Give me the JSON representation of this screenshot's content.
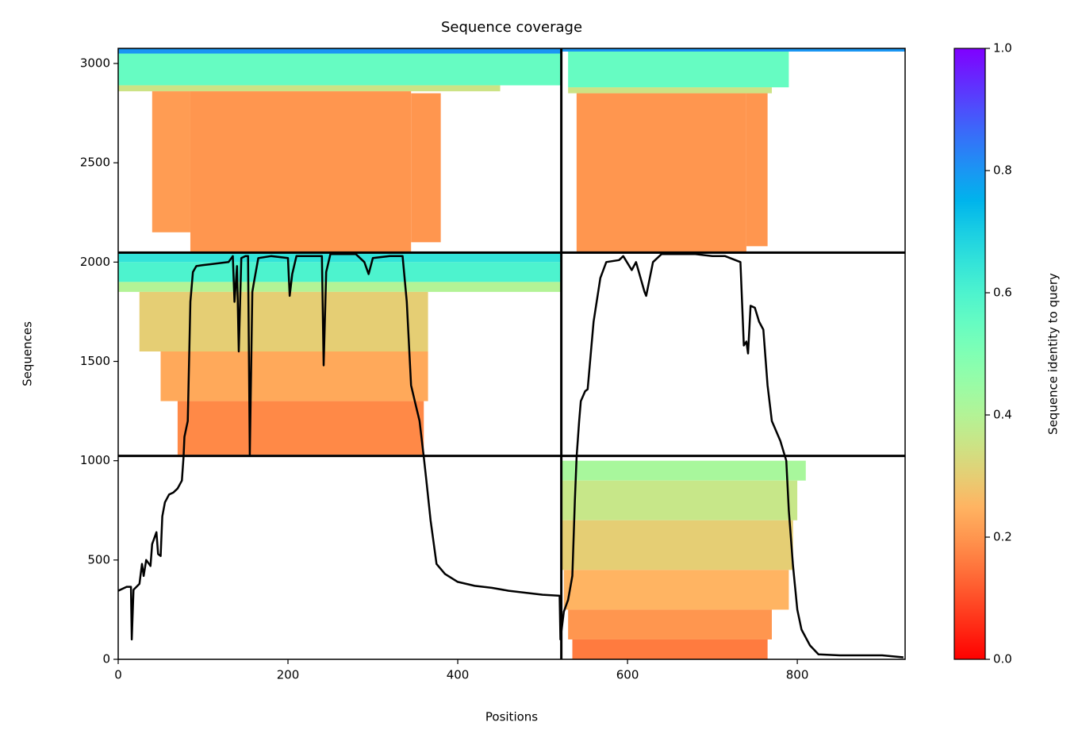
{
  "chart_data": {
    "type": "coverage",
    "title": "Sequence coverage",
    "x_label": "Positions",
    "y_label": "Sequences",
    "xlim": [
      0,
      927
    ],
    "xticks": [
      0,
      200,
      400,
      600,
      800
    ],
    "ylim": [
      0,
      3076
    ],
    "yticks": [
      0,
      500,
      1000,
      1500,
      2000,
      2500,
      3000
    ],
    "colormap": "rainbow_r",
    "colorbar": {
      "label": "Sequence identity to query",
      "lim": [
        0,
        1
      ],
      "ticks": [
        {
          "value": 0,
          "label": "0.0"
        },
        {
          "value": 0.2,
          "label": "0.2"
        },
        {
          "value": 0.4,
          "label": "0.4"
        },
        {
          "value": 0.6,
          "label": "0.6"
        },
        {
          "value": 0.8,
          "label": "0.8"
        },
        {
          "value": 1,
          "label": "1.0"
        }
      ]
    },
    "boundaries_x": [
      522
    ],
    "boundaries_y": [
      1024,
      2048
    ],
    "blocks": [
      {
        "x": [
          0,
          522
        ],
        "y": [
          3050,
          3076
        ],
        "identity": 0.8
      },
      {
        "x": [
          0,
          522
        ],
        "y": [
          2890,
          3050
        ],
        "identity": 0.55
      },
      {
        "x": [
          0,
          450
        ],
        "y": [
          2860,
          2890
        ],
        "identity": 0.35
      },
      {
        "x": [
          40,
          85
        ],
        "y": [
          2150,
          2860
        ],
        "identity": 0.21
      },
      {
        "x": [
          85,
          345
        ],
        "y": [
          2050,
          2860
        ],
        "identity": 0.2
      },
      {
        "x": [
          345,
          380
        ],
        "y": [
          2100,
          2850
        ],
        "identity": 0.2
      },
      {
        "x": [
          522,
          927
        ],
        "y": [
          3060,
          3076
        ],
        "identity": 0.8
      },
      {
        "x": [
          530,
          790
        ],
        "y": [
          2880,
          3060
        ],
        "identity": 0.55
      },
      {
        "x": [
          530,
          770
        ],
        "y": [
          2850,
          2880
        ],
        "identity": 0.35
      },
      {
        "x": [
          540,
          740
        ],
        "y": [
          2050,
          2850
        ],
        "identity": 0.2
      },
      {
        "x": [
          740,
          765
        ],
        "y": [
          2080,
          2850
        ],
        "identity": 0.2
      },
      {
        "x": [
          0,
          522
        ],
        "y": [
          2000,
          2048
        ],
        "identity": 0.65
      },
      {
        "x": [
          0,
          522
        ],
        "y": [
          1900,
          2000
        ],
        "identity": 0.6
      },
      {
        "x": [
          0,
          522
        ],
        "y": [
          1850,
          1900
        ],
        "identity": 0.4
      },
      {
        "x": [
          25,
          365
        ],
        "y": [
          1550,
          1850
        ],
        "identity": 0.3
      },
      {
        "x": [
          50,
          365
        ],
        "y": [
          1300,
          1550
        ],
        "identity": 0.23
      },
      {
        "x": [
          70,
          360
        ],
        "y": [
          1030,
          1300
        ],
        "identity": 0.18
      },
      {
        "x": [
          522,
          810
        ],
        "y": [
          900,
          1000
        ],
        "identity": 0.42
      },
      {
        "x": [
          522,
          800
        ],
        "y": [
          700,
          900
        ],
        "identity": 0.36
      },
      {
        "x": [
          522,
          795
        ],
        "y": [
          450,
          700
        ],
        "identity": 0.3
      },
      {
        "x": [
          525,
          790
        ],
        "y": [
          250,
          450
        ],
        "identity": 0.25
      },
      {
        "x": [
          530,
          770
        ],
        "y": [
          100,
          250
        ],
        "identity": 0.2
      },
      {
        "x": [
          535,
          765
        ],
        "y": [
          0,
          100
        ],
        "identity": 0.16
      }
    ],
    "line": {
      "color": "#000000",
      "x": [
        0,
        10,
        15,
        16,
        18,
        25,
        28,
        30,
        33,
        38,
        40,
        45,
        47,
        50,
        52,
        55,
        60,
        65,
        70,
        75,
        77,
        78,
        82,
        85,
        88,
        92,
        100,
        110,
        130,
        135,
        137,
        140,
        142,
        145,
        150,
        153,
        155,
        158,
        160,
        165,
        180,
        200,
        202,
        205,
        210,
        230,
        240,
        242,
        245,
        250,
        280,
        290,
        295,
        300,
        320,
        335,
        340,
        345,
        350,
        355,
        360,
        363,
        368,
        375,
        385,
        400,
        420,
        440,
        460,
        480,
        500,
        520,
        521,
        525,
        530,
        535,
        538,
        540,
        543,
        545,
        550,
        553,
        560,
        568,
        575,
        590,
        595,
        605,
        610,
        620,
        622,
        630,
        640,
        680,
        700,
        715,
        733,
        737,
        740,
        742,
        745,
        750,
        755,
        760,
        765,
        770,
        780,
        787,
        790,
        795,
        800,
        805,
        815,
        825,
        850,
        900,
        925
      ],
      "values": [
        345,
        365,
        365,
        100,
        350,
        380,
        480,
        420,
        500,
        470,
        580,
        640,
        530,
        520,
        720,
        790,
        830,
        840,
        860,
        900,
        1020,
        1120,
        1200,
        1800,
        1950,
        1980,
        1985,
        1990,
        2000,
        2030,
        1800,
        1980,
        1550,
        2020,
        2030,
        2030,
        1030,
        1850,
        1900,
        2020,
        2030,
        2020,
        1830,
        1940,
        2030,
        2030,
        2030,
        1480,
        1950,
        2040,
        2040,
        2000,
        1940,
        2020,
        2030,
        2030,
        1800,
        1380,
        1290,
        1200,
        1020,
        900,
        700,
        480,
        430,
        390,
        370,
        360,
        345,
        335,
        325,
        320,
        100,
        240,
        300,
        420,
        800,
        1020,
        1200,
        1300,
        1350,
        1360,
        1700,
        1920,
        2000,
        2010,
        2030,
        1960,
        2000,
        1850,
        1830,
        2000,
        2040,
        2040,
        2030,
        2030,
        2000,
        1580,
        1600,
        1540,
        1780,
        1770,
        1700,
        1660,
        1380,
        1200,
        1100,
        1000,
        750,
        470,
        250,
        150,
        70,
        25,
        20,
        20,
        10
      ]
    }
  }
}
